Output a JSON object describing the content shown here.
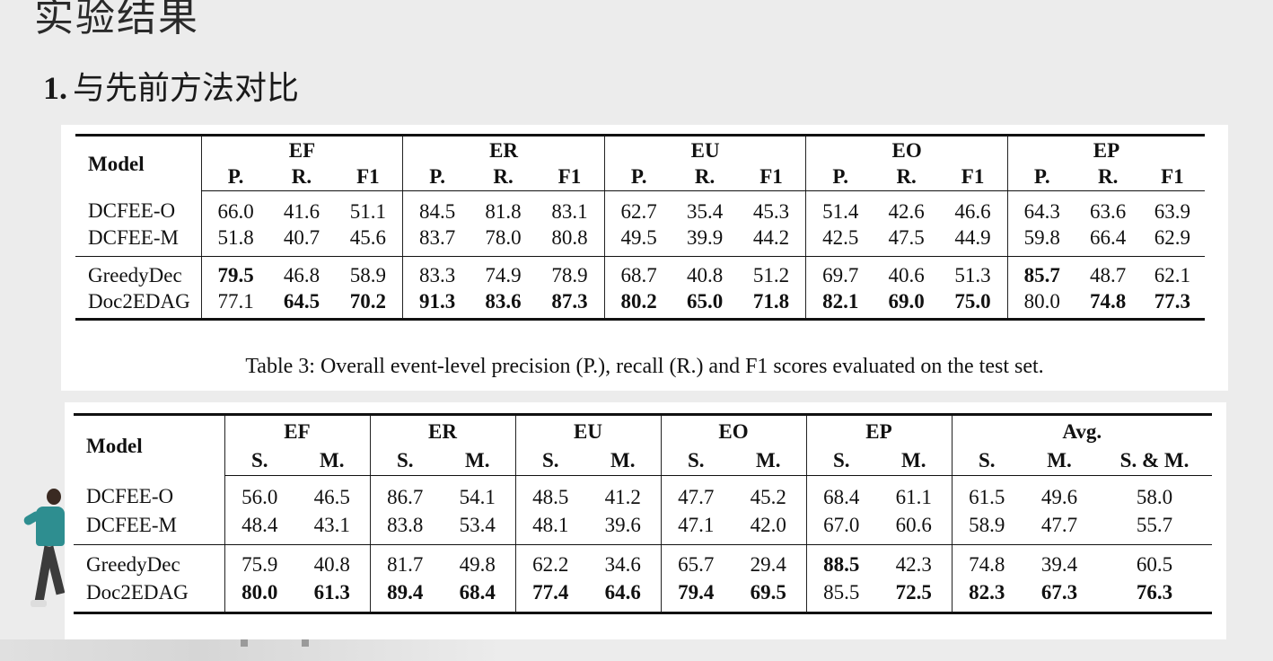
{
  "slide": {
    "title": "实验结果",
    "section_number": "1.",
    "section_title": "与先前方法对比"
  },
  "table1": {
    "header_model": "Model",
    "groups": [
      "EF",
      "ER",
      "EU",
      "EO",
      "EP"
    ],
    "subheaders": [
      "P.",
      "R.",
      "F1"
    ],
    "group1": [
      {
        "model": "DCFEE-O",
        "values": [
          "66.0",
          "41.6",
          "51.1",
          "84.5",
          "81.8",
          "83.1",
          "62.7",
          "35.4",
          "45.3",
          "51.4",
          "42.6",
          "46.6",
          "64.3",
          "63.6",
          "63.9"
        ]
      },
      {
        "model": "DCFEE-M",
        "values": [
          "51.8",
          "40.7",
          "45.6",
          "83.7",
          "78.0",
          "80.8",
          "49.5",
          "39.9",
          "44.2",
          "42.5",
          "47.5",
          "44.9",
          "59.8",
          "66.4",
          "62.9"
        ]
      }
    ],
    "group2": [
      {
        "model": "GreedyDec",
        "values": [
          "79.5",
          "46.8",
          "58.9",
          "83.3",
          "74.9",
          "78.9",
          "68.7",
          "40.8",
          "51.2",
          "69.7",
          "40.6",
          "51.3",
          "85.7",
          "48.7",
          "62.1"
        ]
      },
      {
        "model": "Doc2EDAG",
        "values": [
          "77.1",
          "64.5",
          "70.2",
          "91.3",
          "83.6",
          "87.3",
          "80.2",
          "65.0",
          "71.8",
          "82.1",
          "69.0",
          "75.0",
          "80.0",
          "74.8",
          "77.3"
        ]
      }
    ],
    "caption": "Table 3: Overall event-level precision (P.), recall (R.) and F1 scores evaluated on the test set."
  },
  "table2": {
    "header_model": "Model",
    "groups": [
      "EF",
      "ER",
      "EU",
      "EO",
      "EP",
      "Avg."
    ],
    "subheaders": [
      "S.",
      "M."
    ],
    "avg_combined_label": "S. & M.",
    "group1": [
      {
        "model": "DCFEE-O",
        "values": [
          "56.0",
          "46.5",
          "86.7",
          "54.1",
          "48.5",
          "41.2",
          "47.7",
          "45.2",
          "68.4",
          "61.1",
          "61.5",
          "49.6",
          "58.0"
        ]
      },
      {
        "model": "DCFEE-M",
        "values": [
          "48.4",
          "43.1",
          "83.8",
          "53.4",
          "48.1",
          "39.6",
          "47.1",
          "42.0",
          "67.0",
          "60.6",
          "58.9",
          "47.7",
          "55.7"
        ]
      }
    ],
    "group2": [
      {
        "model": "GreedyDec",
        "values": [
          "75.9",
          "40.8",
          "81.7",
          "49.8",
          "62.2",
          "34.6",
          "65.7",
          "29.4",
          "88.5",
          "42.3",
          "74.8",
          "39.4",
          "60.5"
        ]
      },
      {
        "model": "Doc2EDAG",
        "values": [
          "80.0",
          "61.3",
          "89.4",
          "68.4",
          "77.4",
          "64.6",
          "79.4",
          "69.5",
          "85.5",
          "72.5",
          "82.3",
          "67.3",
          "76.3"
        ]
      }
    ]
  }
}
